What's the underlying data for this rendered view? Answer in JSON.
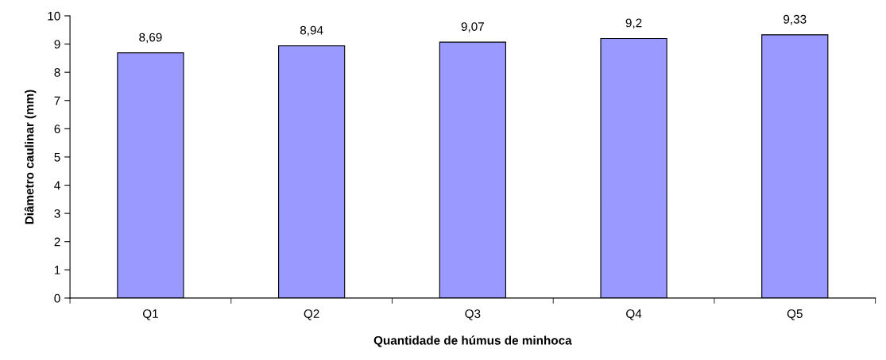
{
  "chart_data": {
    "type": "bar",
    "xlabel": "Quantidade de húmus de minhoca",
    "ylabel": "Diâmetro caulinar (mm)",
    "categories": [
      "Q1",
      "Q2",
      "Q3",
      "Q4",
      "Q5"
    ],
    "values": [
      8.69,
      8.94,
      9.07,
      9.2,
      9.33
    ],
    "value_labels": [
      "8,69",
      "8,94",
      "9,07",
      "9,2",
      "9,33"
    ],
    "color": "#9999ff",
    "ylim": [
      0,
      10
    ],
    "yticks": [
      0,
      1,
      2,
      3,
      4,
      5,
      6,
      7,
      8,
      9,
      10
    ],
    "grid": false,
    "legend": false
  }
}
